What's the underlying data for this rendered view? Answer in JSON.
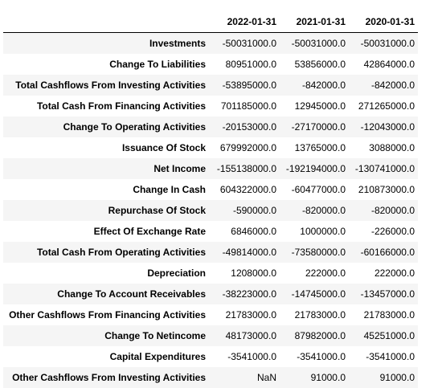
{
  "table": {
    "index_header": "",
    "columns": [
      "2022-01-31",
      "2021-01-31",
      "2020-01-31"
    ],
    "rows": [
      {
        "label": "Investments",
        "values": [
          "-50031000.0",
          "-50031000.0",
          "-50031000.0"
        ]
      },
      {
        "label": "Change To Liabilities",
        "values": [
          "80951000.0",
          "53856000.0",
          "42864000.0"
        ]
      },
      {
        "label": "Total Cashflows From Investing Activities",
        "values": [
          "-53895000.0",
          "-842000.0",
          "-842000.0"
        ]
      },
      {
        "label": "Total Cash From Financing Activities",
        "values": [
          "701185000.0",
          "12945000.0",
          "271265000.0"
        ]
      },
      {
        "label": "Change To Operating Activities",
        "values": [
          "-20153000.0",
          "-27170000.0",
          "-12043000.0"
        ]
      },
      {
        "label": "Issuance Of Stock",
        "values": [
          "679992000.0",
          "13765000.0",
          "3088000.0"
        ]
      },
      {
        "label": "Net Income",
        "values": [
          "-155138000.0",
          "-192194000.0",
          "-130741000.0"
        ]
      },
      {
        "label": "Change In Cash",
        "values": [
          "604322000.0",
          "-60477000.0",
          "210873000.0"
        ]
      },
      {
        "label": "Repurchase Of Stock",
        "values": [
          "-590000.0",
          "-820000.0",
          "-820000.0"
        ]
      },
      {
        "label": "Effect Of Exchange Rate",
        "values": [
          "6846000.0",
          "1000000.0",
          "-226000.0"
        ]
      },
      {
        "label": "Total Cash From Operating Activities",
        "values": [
          "-49814000.0",
          "-73580000.0",
          "-60166000.0"
        ]
      },
      {
        "label": "Depreciation",
        "values": [
          "1208000.0",
          "222000.0",
          "222000.0"
        ]
      },
      {
        "label": "Change To Account Receivables",
        "values": [
          "-38223000.0",
          "-14745000.0",
          "-13457000.0"
        ]
      },
      {
        "label": "Other Cashflows From Financing Activities",
        "values": [
          "21783000.0",
          "21783000.0",
          "21783000.0"
        ]
      },
      {
        "label": "Change To Netincome",
        "values": [
          "48173000.0",
          "87982000.0",
          "45251000.0"
        ]
      },
      {
        "label": "Capital Expenditures",
        "values": [
          "-3541000.0",
          "-3541000.0",
          "-3541000.0"
        ]
      },
      {
        "label": "Other Cashflows From Investing Activities",
        "values": [
          "NaN",
          "91000.0",
          "91000.0"
        ]
      }
    ]
  }
}
